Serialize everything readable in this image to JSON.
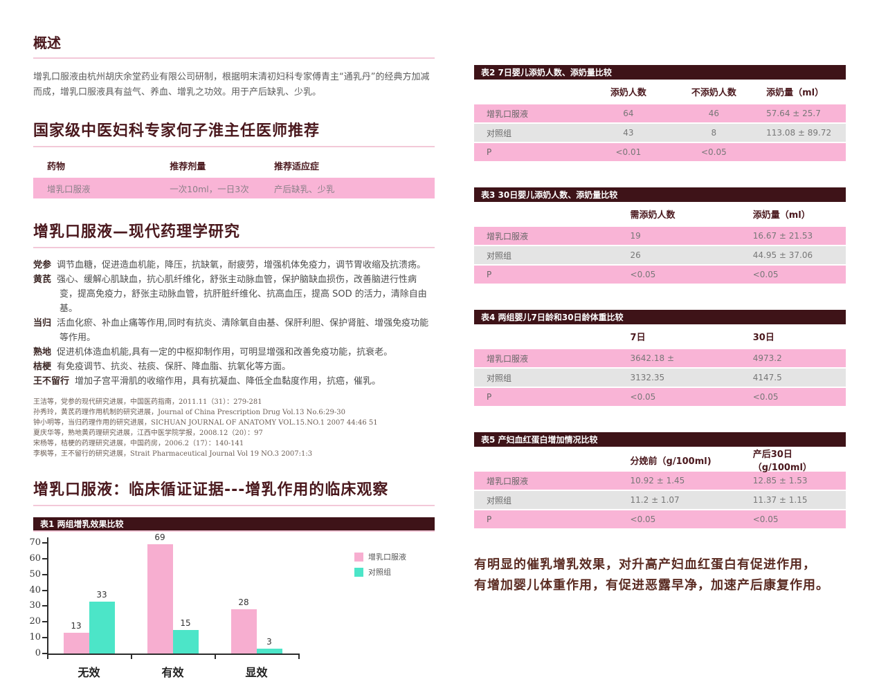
{
  "left": {
    "overview": {
      "title": "概述",
      "body": "增乳口服液由杭州胡庆余堂药业有限公司研制，根据明末清初妇科专家傅青主“通乳丹”的经典方加减而成，增乳口服液具有益气、养血、增乳之功效。用于产后缺乳、少乳。"
    },
    "recommendation": {
      "title": "国家级中医妇科专家何子淮主任医师推荐",
      "headers": [
        "药物",
        "推荐剂量",
        "推荐适应症"
      ],
      "row": [
        "增乳口服液",
        "一次10ml，一日3次",
        "产后缺乳、少乳"
      ]
    },
    "pharmacology": {
      "title": "增乳口服液—现代药理学研究",
      "items": [
        {
          "term": "党参",
          "desc": "调节血糖，促进造血机能，降压，抗缺氧，耐疲劳，增强机体免疫力，调节胃收缩及抗溃疡。"
        },
        {
          "term": "黄芪",
          "desc": "强心、缓解心肌缺血，抗心肌纤维化，舒张主动脉血管，保护脑缺血损伤，改善脑进行性病变，提高免疫力，舒张主动脉血管，抗肝脏纤维化、抗高血压，提高 SOD 的活力，清除自由基。"
        },
        {
          "term": "当归",
          "desc": "活血化瘀、补血止痛等作用,同时有抗炎、清除氧自由基、保肝利胆、保护肾脏、增强免疫功能等作用。"
        },
        {
          "term": "熟地",
          "desc": "促进机体造血机能,具有一定的中枢抑制作用，可明显增强和改善免疫功能，抗衰老。"
        },
        {
          "term": "桔梗",
          "desc": "有免疫调节、抗炎、祛痰、保肝、降血脂、抗氧化等方面。"
        },
        {
          "term": "王不留行",
          "desc": "增加子宫平滑肌的收缩作用，具有抗凝血、降低全血黏度作用，抗癌，催乳。"
        }
      ],
      "references": [
        "王洁等，党参的现代研究进展，中国医药指南，2011.11（31）：279-281",
        "孙秀玲，黄芪药理作用机制的研究进展，Journal of China Prescription Drug Vol.13 No.6:29-30",
        "钟小明等，当归药理作用的研究进展，SICHUAN JOURNAL OF ANATOMY VOL.15.NO.1 2007 44:46 51",
        "夏庆华等，熟地黄药理研究进展，江西中医学院学报，2008.12（20）：97",
        "宋杨等，桔梗的药理研究进展，中国药房，2006.2（17）：140-141",
        "李枫等，王不留行的研究进展，Strait Pharmaceutical Journal Vol 19 NO.3 2007:1:3"
      ]
    },
    "clinical": {
      "title": "增乳口服液：临床循证证据---增乳作用的临床观察",
      "table1_caption": "表1 两组增乳效果比较"
    }
  },
  "chart_data": {
    "type": "bar",
    "title": "表1 两组增乳效果比较",
    "categories": [
      "无效",
      "有效",
      "显效"
    ],
    "series": [
      {
        "name": "增乳口服液",
        "color": "#f7aed0",
        "values": [
          13,
          69,
          28
        ]
      },
      {
        "name": "对照组",
        "color": "#4ce5c8",
        "values": [
          33,
          15,
          3
        ]
      }
    ],
    "xlabel": "",
    "ylabel": "",
    "ylim": [
      0,
      70
    ],
    "yticks": [
      0,
      10,
      20,
      30,
      40,
      50,
      60,
      70
    ],
    "grid": false,
    "legend_position": "right"
  },
  "right": {
    "tables": [
      {
        "caption": "表2 7日婴儿添奶人数、添奶量比较",
        "headers": [
          "",
          "添奶人数",
          "不添奶人数",
          "添奶量（ml）"
        ],
        "rows": [
          [
            "增乳口服液",
            "64",
            "46",
            "57.64 ± 25.7"
          ],
          [
            "对照组",
            "43",
            "8",
            "113.08 ± 89.72"
          ],
          [
            "P",
            "<0.01",
            "<0.05",
            ""
          ]
        ]
      },
      {
        "caption": "表3 30日婴儿添奶人数、添奶量比较",
        "headers": [
          "",
          "需添奶人数",
          "添奶量（ml）"
        ],
        "rows": [
          [
            "增乳口服液",
            "19",
            "16.67 ± 21.53"
          ],
          [
            "对照组",
            "26",
            "44.95 ± 37.06"
          ],
          [
            "P",
            "<0.05",
            "<0.05"
          ]
        ]
      },
      {
        "caption": "表4 两组婴儿7日龄和30日龄体重比较",
        "headers": [
          "",
          "7日",
          "30日"
        ],
        "rows": [
          [
            "增乳口服液",
            "3642.18 ±",
            "4973.2"
          ],
          [
            "对照组",
            "3132.35",
            "4147.5"
          ],
          [
            "P",
            "<0.05",
            "<0.05"
          ]
        ]
      },
      {
        "caption": "表5 产妇血红蛋白增加情况比较",
        "headers": [
          "",
          "分娩前（g/100ml)",
          "产后30日（g/100ml）"
        ],
        "rows": [
          [
            "增乳口服液",
            "10.92 ± 1.45",
            "12.85 ± 1.53"
          ],
          [
            "对照组",
            "11.2 ± 1.07",
            "11.37 ± 1.15"
          ],
          [
            "P",
            "<0.05",
            "<0.05"
          ]
        ]
      }
    ],
    "conclusion_lines": [
      "有明显的催乳增乳效果，对升高产妇血红蛋白有促进作用，",
      "有增加婴儿体重作用，有促进恶露早净，加速产后康复作用。"
    ]
  },
  "colors": {
    "header_bar": "#3e1318",
    "heading_text": "#4a181d",
    "underline_pink": "#f3c8d8",
    "row_pink": "#f9b4d6",
    "row_gray": "#e4e4e4",
    "bar_pink": "#f7aed0",
    "bar_teal": "#4ce5c8",
    "conclusion_text": "#5a2b22"
  }
}
